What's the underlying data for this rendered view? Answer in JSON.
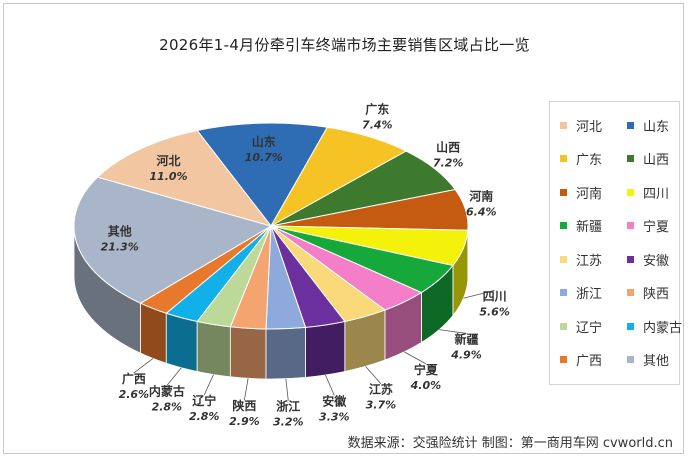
{
  "title": "2026年1-4月份牵引车终端市场主要销售区域占比一览",
  "footer": "数据来源：交强险统计   制图：第一商用车网 cvworld.cn",
  "chart_data": {
    "type": "pie",
    "title": "2026年1-4月份牵引车终端市场主要销售区域占比一览",
    "legend_position": "right",
    "unit": "%",
    "slices": [
      {
        "name": "山东",
        "value": 10.7,
        "label": "10.7%",
        "color": "#2e6db4"
      },
      {
        "name": "广东",
        "value": 7.4,
        "label": "7.4%",
        "color": "#f6c325"
      },
      {
        "name": "山西",
        "value": 7.2,
        "label": "7.2%",
        "color": "#3d7a2e"
      },
      {
        "name": "河南",
        "value": 6.4,
        "label": "6.4%",
        "color": "#c55a11"
      },
      {
        "name": "四川",
        "value": 5.6,
        "label": "5.6%",
        "color": "#f4f20a"
      },
      {
        "name": "新疆",
        "value": 4.9,
        "label": "4.9%",
        "color": "#17a83c"
      },
      {
        "name": "宁夏",
        "value": 4.0,
        "label": "4.0%",
        "color": "#f47ec8"
      },
      {
        "name": "江苏",
        "value": 3.7,
        "label": "3.7%",
        "color": "#fad97a"
      },
      {
        "name": "安徽",
        "value": 3.3,
        "label": "3.3%",
        "color": "#6c2f9e"
      },
      {
        "name": "浙江",
        "value": 3.2,
        "label": "3.2%",
        "color": "#8ea9db"
      },
      {
        "name": "陕西",
        "value": 2.9,
        "label": "2.9%",
        "color": "#f4a46e"
      },
      {
        "name": "辽宁",
        "value": 2.8,
        "label": "2.8%",
        "color": "#bcd99a"
      },
      {
        "name": "内蒙古",
        "value": 2.8,
        "label": "2.8%",
        "color": "#12b0e8"
      },
      {
        "name": "广西",
        "value": 2.6,
        "label": "2.6%",
        "color": "#e8782c"
      },
      {
        "name": "其他",
        "value": 21.3,
        "label": "21.3%",
        "color": "#a9b6c9"
      },
      {
        "name": "河北",
        "value": 11.0,
        "label": "11.0%",
        "color": "#f3c6a2"
      }
    ],
    "legend": [
      {
        "name": "河北",
        "color": "#f3c6a2"
      },
      {
        "name": "山东",
        "color": "#2e6db4"
      },
      {
        "name": "广东",
        "color": "#f6c325"
      },
      {
        "name": "山西",
        "color": "#3d7a2e"
      },
      {
        "name": "河南",
        "color": "#c55a11"
      },
      {
        "name": "四川",
        "color": "#f4f20a"
      },
      {
        "name": "新疆",
        "color": "#17a83c"
      },
      {
        "name": "宁夏",
        "color": "#f47ec8"
      },
      {
        "name": "江苏",
        "color": "#fad97a"
      },
      {
        "name": "安徽",
        "color": "#6c2f9e"
      },
      {
        "name": "浙江",
        "color": "#8ea9db"
      },
      {
        "name": "陕西",
        "color": "#f4a46e"
      },
      {
        "name": "辽宁",
        "color": "#bcd99a"
      },
      {
        "name": "内蒙古",
        "color": "#12b0e8"
      },
      {
        "name": "广西",
        "color": "#e8782c"
      },
      {
        "name": "其他",
        "color": "#a9b6c9"
      }
    ]
  }
}
